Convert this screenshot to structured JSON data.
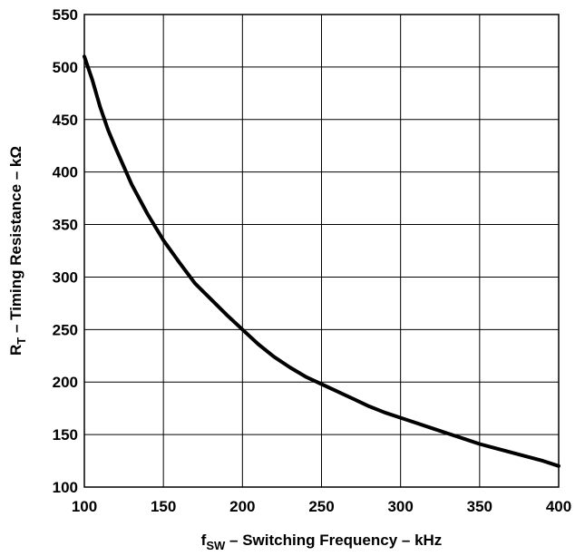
{
  "chart_data": {
    "type": "line",
    "xlabel": {
      "prefix": "f",
      "subscript": "SW",
      "rest": " – Switching Frequency – kHz"
    },
    "ylabel": {
      "prefix": "R",
      "subscript": "T",
      "rest": " – Timing Resistance – kΩ"
    },
    "xlim": [
      100,
      400
    ],
    "ylim": [
      100,
      550
    ],
    "xticks": [
      100,
      150,
      200,
      250,
      300,
      350,
      400
    ],
    "yticks": [
      100,
      150,
      200,
      250,
      300,
      350,
      400,
      450,
      500,
      550
    ],
    "grid": true,
    "series": [
      {
        "color": "#000000",
        "x": [
          100,
          105,
          110,
          115,
          120,
          130,
          140,
          150,
          160,
          170,
          180,
          190,
          200,
          210,
          220,
          230,
          240,
          250,
          260,
          270,
          280,
          290,
          300,
          310,
          320,
          330,
          340,
          350,
          360,
          370,
          380,
          390,
          400
        ],
        "y": [
          510,
          488,
          462,
          440,
          422,
          388,
          360,
          335,
          314,
          294,
          279,
          264,
          250,
          236,
          224,
          214,
          205,
          198,
          191,
          184,
          177,
          171,
          166,
          161,
          156,
          151,
          146,
          141,
          137,
          133,
          129,
          125,
          120
        ]
      }
    ]
  }
}
